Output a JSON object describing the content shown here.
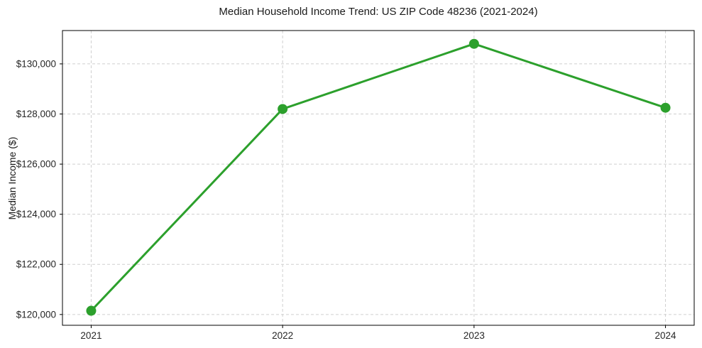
{
  "figure": {
    "title": "Median Household Income Trend: US ZIP Code 48236 (2021-2024)",
    "y_axis_label": "Median Income ($)"
  },
  "chart_data": {
    "type": "line",
    "title": "Median Household Income Trend: US ZIP Code 48236 (2021-2024)",
    "xlabel": "",
    "ylabel": "Median Income ($)",
    "categories": [
      "2021",
      "2022",
      "2023",
      "2024"
    ],
    "series": [
      {
        "name": "Median Household Income",
        "values": [
          120150,
          128200,
          130800,
          128250
        ]
      }
    ],
    "yticks": [
      {
        "value": 120000,
        "label": "$120,000"
      },
      {
        "value": 122000,
        "label": "$122,000"
      },
      {
        "value": 124000,
        "label": "$124,000"
      },
      {
        "value": 126000,
        "label": "$126,000"
      },
      {
        "value": 128000,
        "label": "$128,000"
      },
      {
        "value": 130000,
        "label": "$130,000"
      }
    ],
    "ylim": [
      119570,
      131330
    ],
    "xlim": [
      -0.15,
      3.15
    ],
    "grid": "dashed-both",
    "legend_position": "none",
    "marker": "circle",
    "colors": {
      "line": "#2ca02c",
      "marker": "#2ca02c",
      "grid": "#cfcfcf",
      "frame": "#000000",
      "tick_text": "#262626"
    }
  }
}
